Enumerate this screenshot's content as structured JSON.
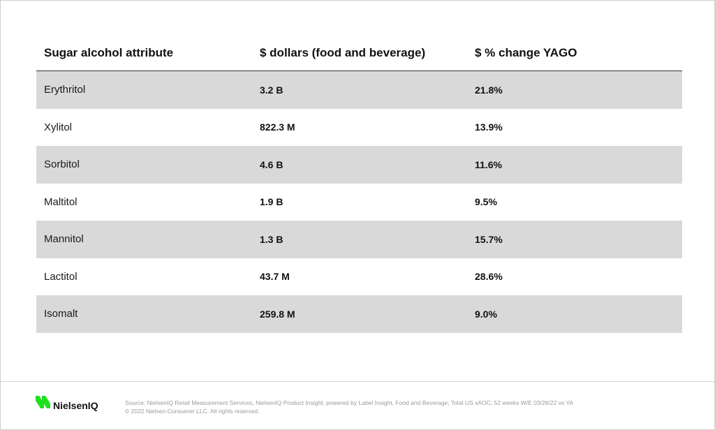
{
  "chart_data": {
    "type": "table",
    "columns": [
      "Sugar alcohol attribute",
      "$ dollars (food and beverage)",
      "$ % change YAGO"
    ],
    "rows": [
      {
        "attribute": "Erythritol",
        "dollars": "3.2 B",
        "change": "21.8%"
      },
      {
        "attribute": "Xylitol",
        "dollars": "822.3 M",
        "change": "13.9%"
      },
      {
        "attribute": "Sorbitol",
        "dollars": "4.6 B",
        "change": "11.6%"
      },
      {
        "attribute": "Maltitol",
        "dollars": "1.9 B",
        "change": "9.5%"
      },
      {
        "attribute": "Mannitol",
        "dollars": "1.3 B",
        "change": "15.7%"
      },
      {
        "attribute": "Lactitol",
        "dollars": "43.7 M",
        "change": "28.6%"
      },
      {
        "attribute": "Isomalt",
        "dollars": "259.8 M",
        "change": "9.0%"
      }
    ]
  },
  "footer": {
    "logo_text": "NielsenIQ",
    "source": "Source: NielsenIQ Retail Measurement Services, NielsenIQ Product Insight, powered by Label Insight, Food and Beverage; Total US xAOC; 52 weeks W/E 03/26/22 vs YA",
    "copyright": "© 2022 Nielsen Consumer LLC. All rights reserved."
  },
  "colors": {
    "row_shade": "#d9d9d9",
    "logo_green": "#1fe01f",
    "text": "#111111",
    "footer_text": "#9a9a9a"
  },
  "icons": {
    "logo_mark": "nielseniq-logo-icon"
  }
}
